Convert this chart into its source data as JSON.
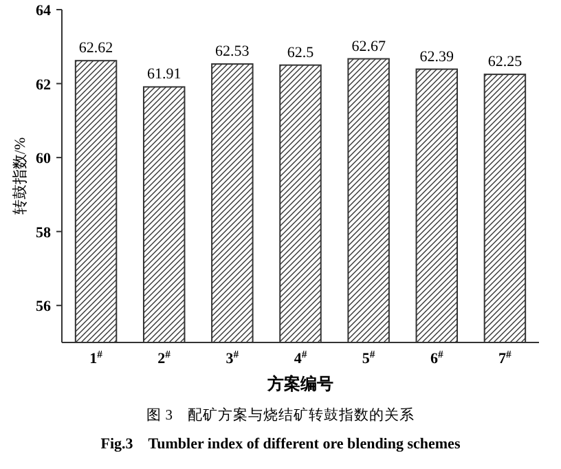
{
  "chart_data": {
    "type": "bar",
    "xlabel": "方案编号",
    "ylabel": "转鼓指数/%",
    "categories": [
      "1$^{#}$",
      "2$^{#}$",
      "3$^{#}$",
      "4$^{#}$",
      "5$^{#}$",
      "6$^{#}$",
      "7$^{#}$"
    ],
    "values": [
      62.62,
      61.91,
      62.53,
      62.5,
      62.67,
      62.39,
      62.25
    ],
    "color": "#333333",
    "data_labels": true,
    "ylim": [
      55,
      64
    ],
    "yticks": [
      56,
      58,
      60,
      62,
      64
    ],
    "grid": false,
    "annotations": [
      "图 3　配矿方案与烧结矿转鼓指数的关系",
      "Fig.3　Tumbler index of different ore blending schemes"
    ]
  }
}
